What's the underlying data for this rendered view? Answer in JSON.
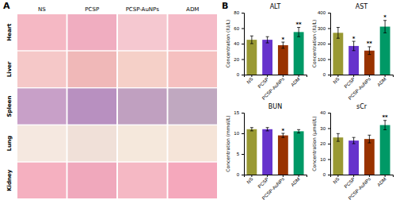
{
  "chart_data": [
    {
      "type": "grid",
      "label": "A",
      "categories": [
        "NS",
        "PCSP",
        "PCSP-AuNPs",
        "ADM"
      ],
      "rows": [
        "Heart",
        "Liver",
        "Spleen",
        "Lung",
        "Kidney"
      ],
      "colors": [
        [
          "#f5b8c4",
          "#f0adc0",
          "#f5c8d0",
          "#f5bbc8"
        ],
        [
          "#f5c8c8",
          "#f0b8b8",
          "#f5d0c8",
          "#f5c0c0"
        ],
        [
          "#c8a0c8",
          "#b890c0",
          "#c0a0c0",
          "#c0a8c0"
        ],
        [
          "#f5e8e0",
          "#f0e0d8",
          "#f5e8dc",
          "#f5e4d8"
        ],
        [
          "#f5b0c0",
          "#f0a8bc",
          "#f5b8c4",
          "#f5a8bc"
        ]
      ]
    },
    {
      "type": "bar",
      "label": "B",
      "title": "ALT",
      "ylabel": "Concentration (IU/L)",
      "categories": [
        "NS",
        "PCSP",
        "PCSP-AuNPs",
        "ADM"
      ],
      "values": [
        45,
        45,
        38,
        55
      ],
      "errors": [
        5,
        4,
        4,
        6
      ],
      "colors": [
        "#999933",
        "#6633cc",
        "#993300",
        "#009966"
      ],
      "ylim": [
        0,
        80
      ],
      "yticks": [
        0,
        20,
        40,
        60,
        80
      ],
      "annotations": [
        null,
        null,
        "*",
        "**"
      ],
      "grid": false
    },
    {
      "type": "bar",
      "title": "AST",
      "ylabel": "Concentration (IU/L)",
      "categories": [
        "NS",
        "PCSP",
        "PCSP-AuNPs",
        "ADM"
      ],
      "values": [
        270,
        185,
        155,
        310
      ],
      "errors": [
        35,
        30,
        25,
        40
      ],
      "colors": [
        "#999933",
        "#6633cc",
        "#993300",
        "#009966"
      ],
      "ylim": [
        0,
        400
      ],
      "yticks": [
        0,
        100,
        200,
        300,
        400
      ],
      "annotations": [
        null,
        "*",
        "**",
        "*"
      ],
      "grid": false
    },
    {
      "type": "bar",
      "title": "BUN",
      "ylabel": "Concentration (mmol/L)",
      "categories": [
        "NS",
        "PCSP",
        "PCSP-AuNPs",
        "ADM"
      ],
      "values": [
        11.0,
        11.0,
        9.5,
        10.5
      ],
      "errors": [
        0.4,
        0.4,
        0.5,
        0.4
      ],
      "colors": [
        "#999933",
        "#6633cc",
        "#993300",
        "#009966"
      ],
      "ylim": [
        0,
        15
      ],
      "yticks": [
        0,
        5,
        10,
        15
      ],
      "annotations": [
        null,
        null,
        "*",
        null
      ],
      "grid": false
    },
    {
      "type": "bar",
      "title": "sCr",
      "ylabel": "Concentration (μmol/L)",
      "categories": [
        "NS",
        "PCSP",
        "PCSP-AuNPs",
        "ADM"
      ],
      "values": [
        24,
        22,
        23,
        32
      ],
      "errors": [
        2.5,
        2,
        2.5,
        3
      ],
      "colors": [
        "#999933",
        "#6633cc",
        "#993300",
        "#009966"
      ],
      "ylim": [
        0,
        40
      ],
      "yticks": [
        0,
        10,
        20,
        30,
        40
      ],
      "annotations": [
        null,
        null,
        null,
        "**"
      ],
      "grid": false
    }
  ]
}
